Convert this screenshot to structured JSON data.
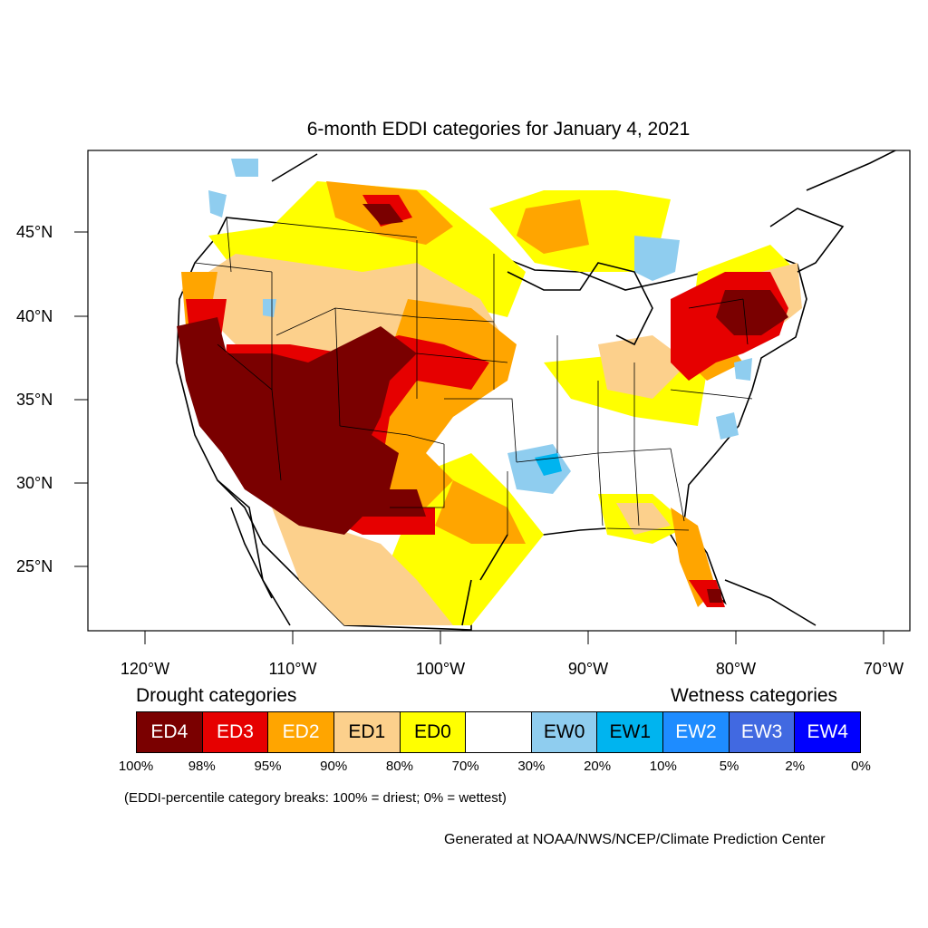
{
  "title": "6-month EDDI categories for January 4, 2021",
  "lat_labels": [
    "45°N",
    "40°N",
    "35°N",
    "30°N",
    "25°N"
  ],
  "lon_labels": [
    "120°W",
    "110°W",
    "100°W",
    "90°W",
    "80°W",
    "70°W"
  ],
  "drought_heading": "Drought categories",
  "wetness_heading": "Wetness categories",
  "categories": [
    {
      "label": "ED4",
      "color": "#7a0000",
      "text_color": "#ffffff"
    },
    {
      "label": "ED3",
      "color": "#e60000",
      "text_color": "#ffffff"
    },
    {
      "label": "ED2",
      "color": "#ffa500",
      "text_color": "#ffffff"
    },
    {
      "label": "ED1",
      "color": "#fcd08c",
      "text_color": "#000000"
    },
    {
      "label": "ED0",
      "color": "#ffff00",
      "text_color": "#000000"
    },
    {
      "label": "",
      "color": "#ffffff",
      "text_color": "#000000"
    },
    {
      "label": "EW0",
      "color": "#8fcdef",
      "text_color": "#000000"
    },
    {
      "label": "EW1",
      "color": "#00b4ef",
      "text_color": "#000000"
    },
    {
      "label": "EW2",
      "color": "#1e8cff",
      "text_color": "#ffffff"
    },
    {
      "label": "EW3",
      "color": "#4169e1",
      "text_color": "#ffffff"
    },
    {
      "label": "EW4",
      "color": "#0000ff",
      "text_color": "#ffffff"
    }
  ],
  "percentiles": [
    "100%",
    "98%",
    "95%",
    "90%",
    "80%",
    "70%",
    "30%",
    "20%",
    "10%",
    "5%",
    "2%",
    "0%"
  ],
  "note": "(EDDI-percentile category breaks: 100% = driest; 0% = wettest)",
  "credit": "Generated at NOAA/NWS/NCEP/Climate Prediction Center"
}
